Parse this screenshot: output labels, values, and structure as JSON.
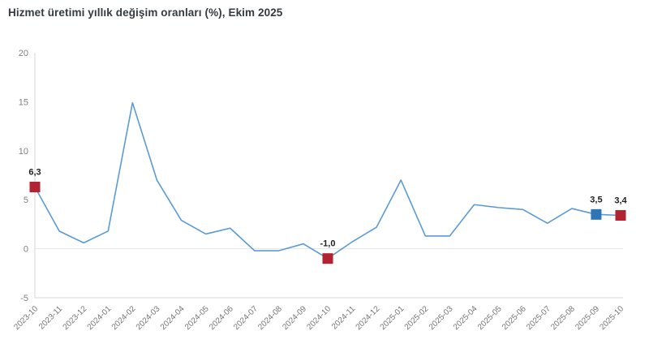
{
  "title": "Hizmet üretimi yıllık değişim oranları (%), Ekim 2025",
  "chart_data": {
    "type": "line",
    "title": "Hizmet üretimi yıllık değişim oranları (%), Ekim 2025",
    "x": [
      "2023-10",
      "2023-11",
      "2023-12",
      "2024-01",
      "2024-02",
      "2024-03",
      "2024-04",
      "2024-05",
      "2024-06",
      "2024-07",
      "2024-08",
      "2024-09",
      "2024-10",
      "2024-11",
      "2024-12",
      "2025-01",
      "2025-02",
      "2025-03",
      "2025-04",
      "2025-05",
      "2025-06",
      "2025-07",
      "2025-08",
      "2025-09",
      "2025-10"
    ],
    "values": [
      6.3,
      1.8,
      0.6,
      1.8,
      14.9,
      7.0,
      2.9,
      1.5,
      2.1,
      -0.2,
      -0.2,
      0.5,
      -1.0,
      0.7,
      2.2,
      7.0,
      1.3,
      1.3,
      4.5,
      4.2,
      4.0,
      2.6,
      4.1,
      3.5,
      3.4
    ],
    "ylim": [
      -5,
      20
    ],
    "yticks": [
      20,
      15,
      10,
      5,
      0,
      -5
    ],
    "xlabel": "",
    "ylabel": "",
    "legend": "none",
    "grid": "zero-and-bottom-lines-only",
    "line_color": "#5b9bd5",
    "axis_color": "#d4d4d4",
    "tick_label_color": "#757575",
    "annotation_label_color": "#1f1f1f",
    "annotations": [
      {
        "x": "2023-10",
        "value": 6.3,
        "label": "6,3",
        "marker": "square",
        "color": "#b22230"
      },
      {
        "x": "2024-10",
        "value": -1.0,
        "label": "-1,0",
        "marker": "square",
        "color": "#b22230"
      },
      {
        "x": "2025-09",
        "value": 3.5,
        "label": "3,5",
        "marker": "square",
        "color": "#2e75b6"
      },
      {
        "x": "2025-10",
        "value": 3.4,
        "label": "3,4",
        "marker": "square",
        "color": "#b22230"
      }
    ]
  }
}
